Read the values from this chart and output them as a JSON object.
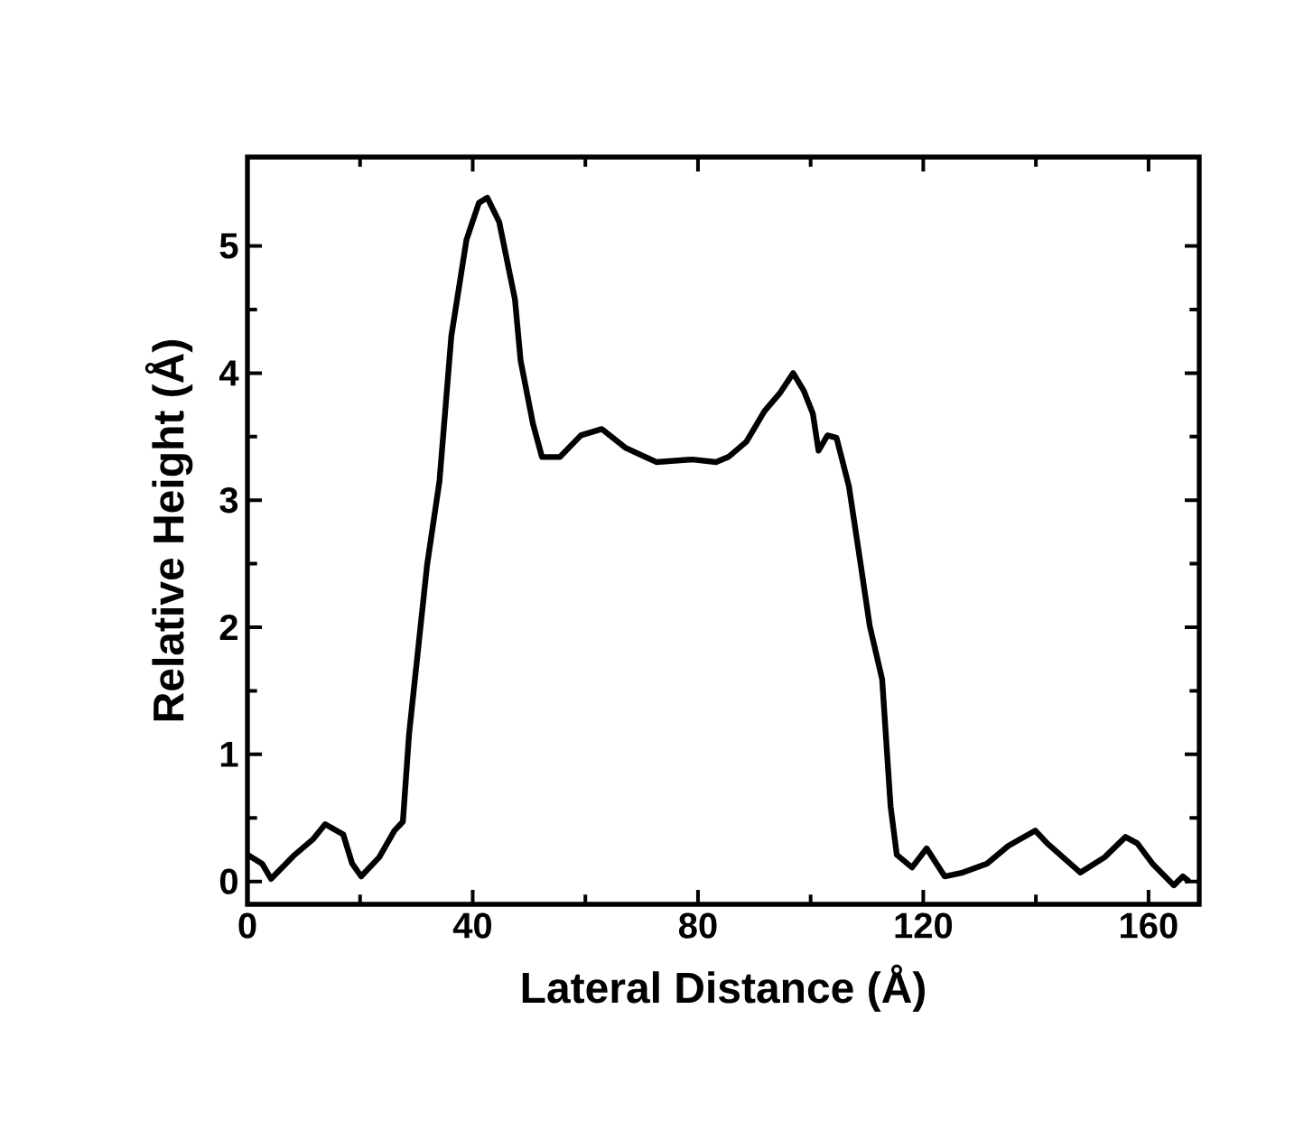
{
  "chart_data": {
    "type": "line",
    "xlabel": "Lateral Distance (Å)",
    "ylabel": "Relative Height (Å)",
    "xlim": [
      0,
      169
    ],
    "ylim": [
      -0.18,
      5.7
    ],
    "xticks": [
      0,
      40,
      80,
      120,
      160
    ],
    "yticks": [
      0,
      1,
      2,
      3,
      4,
      5
    ],
    "grid": false,
    "marker": "none",
    "line_style": "solid",
    "series": [
      {
        "color": "#000000",
        "x": [
          0,
          2.6,
          4.2,
          8.4,
          11.6,
          13.8,
          17,
          18.6,
          20.2,
          23.4,
          26.1,
          27.6,
          28.7,
          31.9,
          34.1,
          36.2,
          38.9,
          41.1,
          42.6,
          44.7,
          47.5,
          48.5,
          50.7,
          52.3,
          55.5,
          59.2,
          62.9,
          67.2,
          72.6,
          79,
          83.2,
          85.4,
          88.6,
          91.8,
          94.5,
          96.9,
          98.8,
          100.4,
          101.4,
          103,
          104.6,
          106.8,
          108.9,
          110.5,
          112.7,
          114.2,
          115.3,
          118,
          120.6,
          123.8,
          127,
          131.3,
          135.1,
          139.9,
          142,
          147.9,
          152.2,
          155.9,
          158,
          160.7,
          164.5,
          166.1,
          167.2
        ],
        "values": [
          0.21,
          0.14,
          0.02,
          0.21,
          0.33,
          0.45,
          0.37,
          0.14,
          0.04,
          0.19,
          0.4,
          0.47,
          1.16,
          2.49,
          3.15,
          4.29,
          5.05,
          5.34,
          5.38,
          5.19,
          4.58,
          4.1,
          3.6,
          3.34,
          3.34,
          3.51,
          3.56,
          3.41,
          3.3,
          3.32,
          3.3,
          3.34,
          3.46,
          3.7,
          3.84,
          4.0,
          3.86,
          3.68,
          3.39,
          3.51,
          3.49,
          3.11,
          2.49,
          2.01,
          1.59,
          0.59,
          0.21,
          0.11,
          0.26,
          0.04,
          0.07,
          0.14,
          0.28,
          0.4,
          0.3,
          0.07,
          0.19,
          0.35,
          0.3,
          0.14,
          -0.03,
          0.04,
          0.0
        ]
      }
    ]
  }
}
